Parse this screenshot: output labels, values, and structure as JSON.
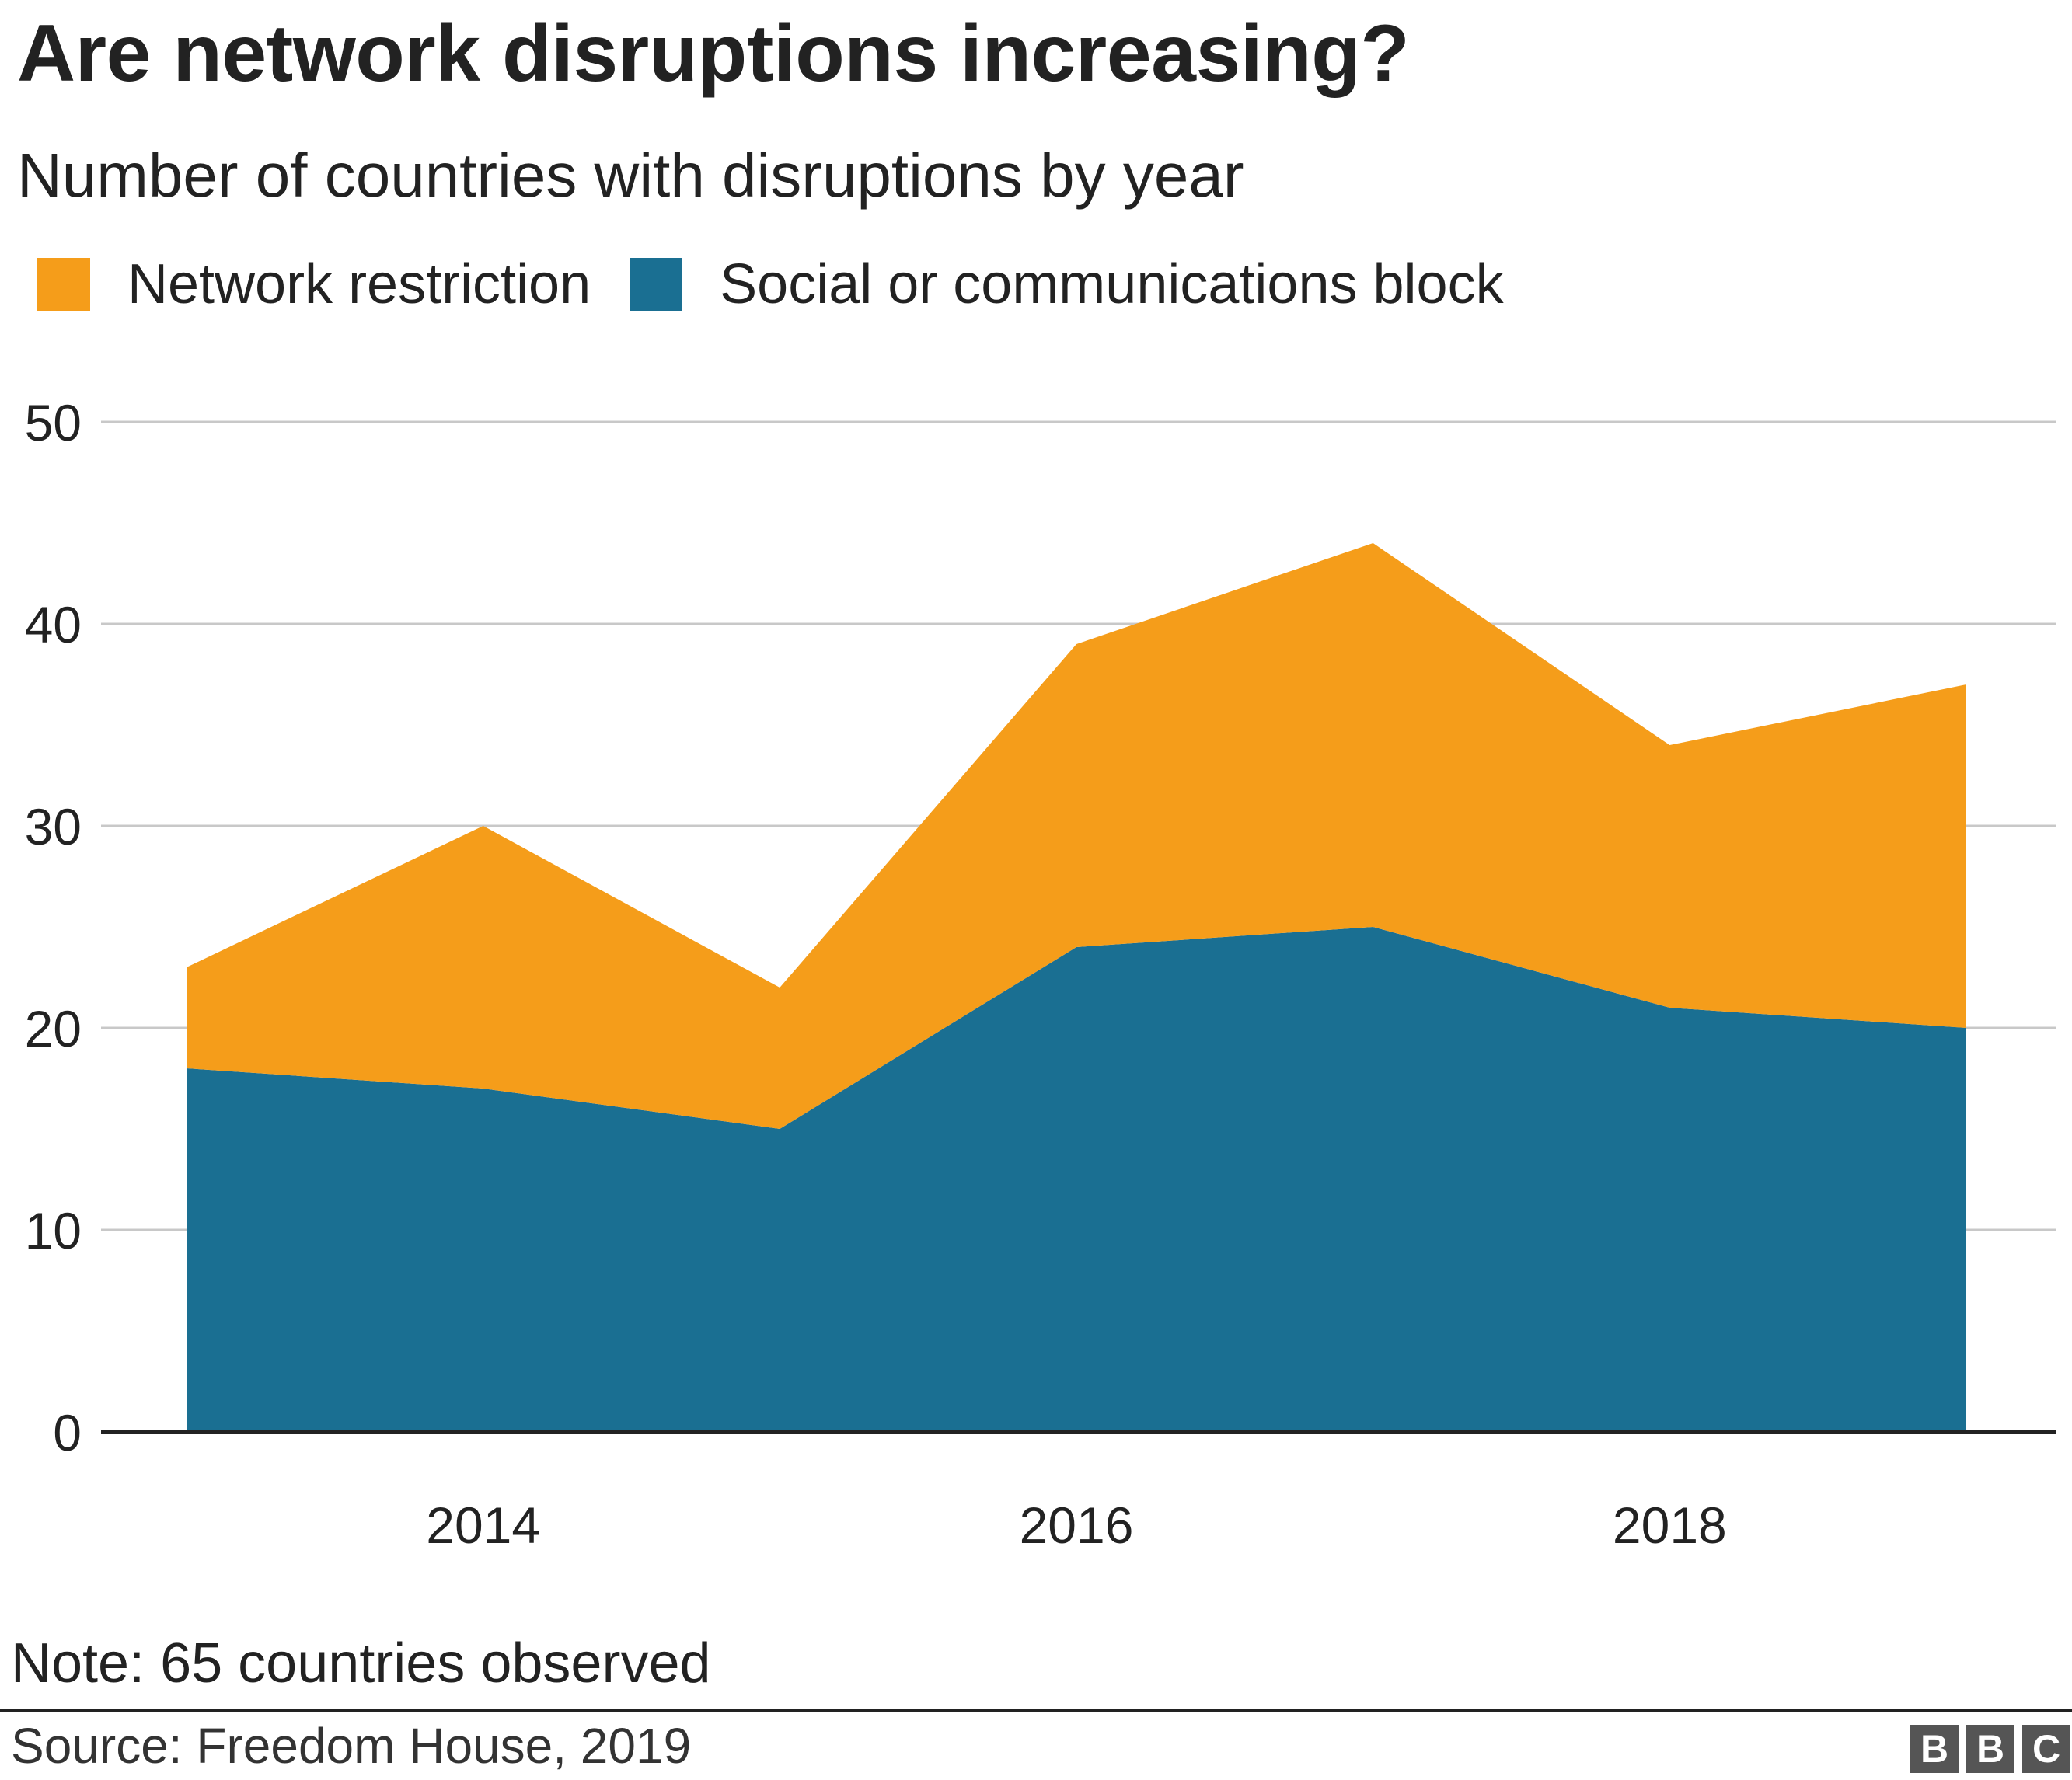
{
  "header": {
    "title": "Are network disruptions increasing?",
    "subtitle": "Number of countries with disruptions by year"
  },
  "legend": {
    "items": [
      {
        "label": "Network restriction",
        "color": "#F59D1A"
      },
      {
        "label": "Social or communications block",
        "color": "#1A6F92"
      }
    ]
  },
  "chart_data": {
    "type": "area",
    "stacked": true,
    "x": [
      2013,
      2014,
      2015,
      2016,
      2017,
      2018,
      2019
    ],
    "series": [
      {
        "name": "Social or communications block",
        "values": [
          18,
          17,
          15,
          24,
          25,
          21,
          20
        ],
        "color": "#1A6F92"
      },
      {
        "name": "Network restriction",
        "values": [
          5,
          13,
          7,
          15,
          19,
          13,
          17
        ],
        "color": "#F59D1A"
      }
    ],
    "xticks": [
      2014,
      2016,
      2018
    ],
    "xtick_labels": [
      "2014",
      "2016",
      "2018"
    ],
    "yticks": [
      0,
      10,
      20,
      30,
      40,
      50
    ],
    "ytick_labels": [
      "0",
      "10",
      "20",
      "30",
      "40",
      "50"
    ],
    "ylim": [
      0,
      50
    ],
    "xlabel": "",
    "ylabel": "",
    "grid": "horizontal",
    "legend_position": "top-left"
  },
  "footer": {
    "note": "Note: 65 countries observed",
    "source": "Source: Freedom House, 2019",
    "logo_letters": [
      "B",
      "B",
      "C"
    ]
  }
}
